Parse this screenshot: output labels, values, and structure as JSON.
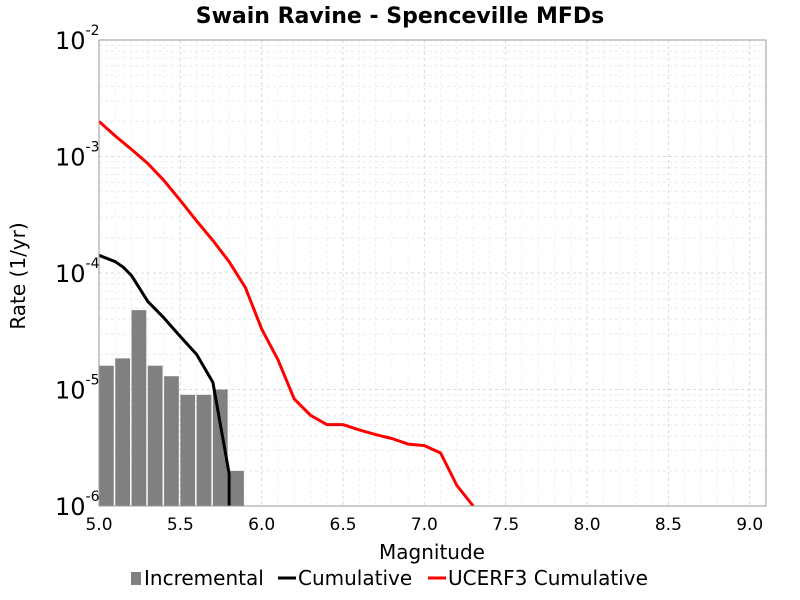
{
  "chart_data": {
    "type": "bar+line",
    "title": "Swain Ravine - Spenceville MFDs",
    "xlabel": "Magnitude",
    "ylabel": "Rate (1/yr)",
    "xlim": [
      5.0,
      9.1
    ],
    "ylim": [
      1e-06,
      0.01
    ],
    "yscale": "log",
    "grid": true,
    "x_ticks": [
      "5.0",
      "5.5",
      "6.0",
      "6.5",
      "7.0",
      "7.5",
      "8.0",
      "8.5",
      "9.0"
    ],
    "y_ticks": [
      {
        "base": "10",
        "exp": "-6"
      },
      {
        "base": "10",
        "exp": "-5"
      },
      {
        "base": "10",
        "exp": "-4"
      },
      {
        "base": "10",
        "exp": "-3"
      },
      {
        "base": "10",
        "exp": "-2"
      }
    ],
    "legend_position": "bottom",
    "series": [
      {
        "name": "Incremental",
        "kind": "bar",
        "color": "#808080",
        "x": [
          5.0,
          5.1,
          5.2,
          5.3,
          5.4,
          5.5,
          5.6,
          5.7,
          5.8
        ],
        "values": [
          1.6e-05,
          1.85e-05,
          4.8e-05,
          1.6e-05,
          1.3e-05,
          9e-06,
          9e-06,
          1e-05,
          2e-06
        ]
      },
      {
        "name": "Cumulative",
        "kind": "line",
        "color": "#000000",
        "x": [
          5.0,
          5.1,
          5.15,
          5.2,
          5.3,
          5.4,
          5.5,
          5.6,
          5.7,
          5.8,
          5.8
        ],
        "values": [
          0.000142,
          0.000125,
          0.000112,
          9.5e-05,
          5.7e-05,
          4.1e-05,
          2.85e-05,
          2e-05,
          1.15e-05,
          1.9e-06,
          1e-06
        ]
      },
      {
        "name": "UCERF3 Cumulative",
        "kind": "line",
        "color": "#ff0000",
        "x": [
          5.0,
          5.1,
          5.2,
          5.3,
          5.4,
          5.5,
          5.6,
          5.7,
          5.8,
          5.9,
          6.0,
          6.1,
          6.2,
          6.3,
          6.4,
          6.5,
          6.6,
          6.7,
          6.8,
          6.9,
          7.0,
          7.1,
          7.2,
          7.3,
          7.3
        ],
        "values": [
          0.002,
          0.0015,
          0.00115,
          0.00087,
          0.00062,
          0.00042,
          0.00028,
          0.00019,
          0.000125,
          7.5e-05,
          3.3e-05,
          1.8e-05,
          8.3e-06,
          6e-06,
          5e-06,
          5e-06,
          4.5e-06,
          4.1e-06,
          3.8e-06,
          3.4e-06,
          3.3e-06,
          2.85e-06,
          1.5e-06,
          1e-06,
          1e-06
        ]
      }
    ]
  }
}
